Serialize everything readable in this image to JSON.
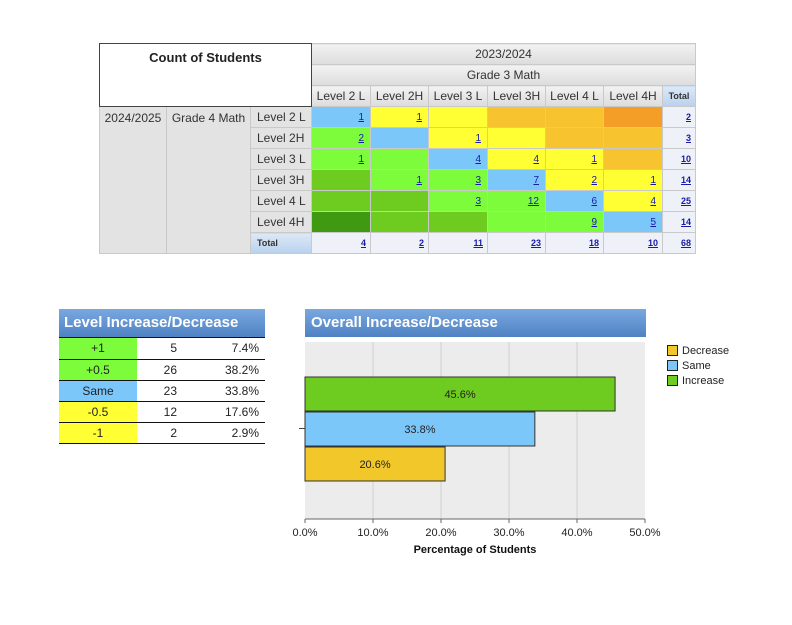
{
  "crosstab": {
    "title": "Count of Students",
    "col_year": "2023/2024",
    "col_subject": "Grade 3 Math",
    "row_year": "2024/2025",
    "row_subject": "Grade 4 Math",
    "col_levels": [
      "Level 2 L",
      "Level 2H",
      "Level 3 L",
      "Level 3H",
      "Level 4 L",
      "Level 4H"
    ],
    "total_label": "Total",
    "rows": [
      {
        "label": "Level 2 L",
        "cells": [
          "1",
          "1",
          "",
          "",
          "",
          ""
        ],
        "total": "2"
      },
      {
        "label": "Level 2H",
        "cells": [
          "2",
          "",
          "1",
          "",
          "",
          ""
        ],
        "total": "3"
      },
      {
        "label": "Level 3 L",
        "cells": [
          "1",
          "",
          "4",
          "4",
          "1",
          ""
        ],
        "total": "10"
      },
      {
        "label": "Level 3H",
        "cells": [
          "",
          "1",
          "3",
          "7",
          "2",
          "1"
        ],
        "total": "14"
      },
      {
        "label": "Level 4 L",
        "cells": [
          "",
          "",
          "3",
          "12",
          "6",
          "4"
        ],
        "total": "25"
      },
      {
        "label": "Level 4H",
        "cells": [
          "",
          "",
          "",
          "",
          "9",
          "5"
        ],
        "total": "14"
      }
    ],
    "col_totals": [
      "4",
      "2",
      "11",
      "23",
      "18",
      "10"
    ],
    "grand_total": "68",
    "cell_colors": [
      [
        "#7cc7fa",
        "#ffff33",
        "#ffff33",
        "#f7c42f",
        "#f7c42f",
        "#f59e27"
      ],
      [
        "#7cfc3a",
        "#7cc7fa",
        "#ffff33",
        "#ffff33",
        "#f7c42f",
        "#f7c42f"
      ],
      [
        "#7cfc3a",
        "#7cfc3a",
        "#7cc7fa",
        "#ffff33",
        "#ffff33",
        "#f7c42f"
      ],
      [
        "#6ecb1f",
        "#7cfc3a",
        "#7cfc3a",
        "#7cc7fa",
        "#ffff33",
        "#ffff33"
      ],
      [
        "#6ecb1f",
        "#6ecb1f",
        "#7cfc3a",
        "#7cfc3a",
        "#7cc7fa",
        "#ffff33"
      ],
      [
        "#3f9a12",
        "#6ecb1f",
        "#6ecb1f",
        "#7cfc3a",
        "#7cfc3a",
        "#7cc7fa"
      ]
    ]
  },
  "level_table": {
    "title": "Level Increase/Decrease",
    "rows": [
      {
        "label": "+1",
        "count": "5",
        "pct": "7.4%",
        "color": "#7cfc3a"
      },
      {
        "label": "+0.5",
        "count": "26",
        "pct": "38.2%",
        "color": "#7cfc3a"
      },
      {
        "label": "Same",
        "count": "23",
        "pct": "33.8%",
        "color": "#7cc7fa"
      },
      {
        "label": "-0.5",
        "count": "12",
        "pct": "17.6%",
        "color": "#ffff33"
      },
      {
        "label": "-1",
        "count": "2",
        "pct": "2.9%",
        "color": "#ffff33"
      }
    ]
  },
  "chart_data": {
    "type": "bar",
    "orientation": "horizontal",
    "title": "Overall Increase/Decrease",
    "xlabel": "Percentage of Students",
    "ylabel": "",
    "xlim": [
      0,
      50
    ],
    "ticks": [
      "0.0%",
      "10.0%",
      "20.0%",
      "30.0%",
      "40.0%",
      "50.0%"
    ],
    "categories": [
      "Increase",
      "Same",
      "Decrease"
    ],
    "values": [
      45.6,
      33.8,
      20.6
    ],
    "data_labels": [
      "45.6%",
      "33.8%",
      "20.6%"
    ],
    "colors": [
      "#6ecb1f",
      "#7cc7fa",
      "#f2c72a"
    ],
    "grid": true,
    "legend_position": "right",
    "legend": [
      {
        "name": "Decrease",
        "color": "#f2c72a"
      },
      {
        "name": "Same",
        "color": "#7cc7fa"
      },
      {
        "name": "Increase",
        "color": "#6ecb1f"
      }
    ]
  }
}
